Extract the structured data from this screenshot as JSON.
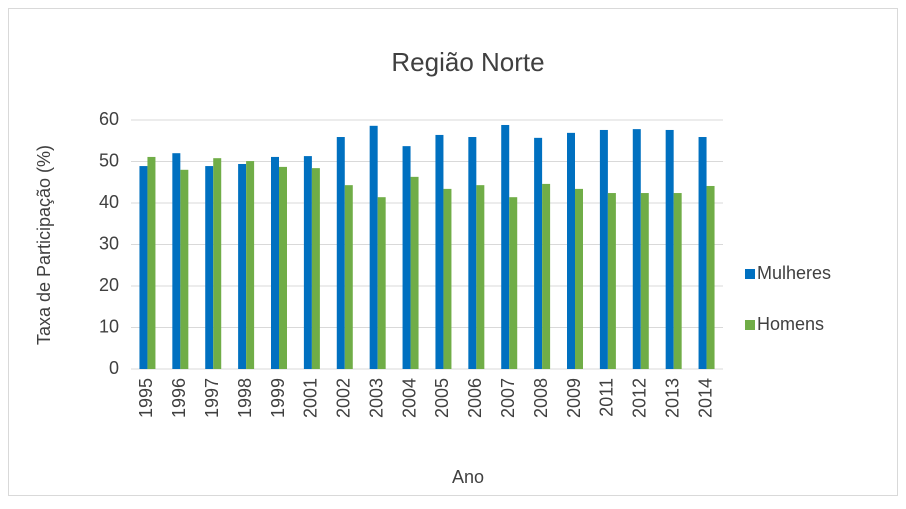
{
  "chart_data": {
    "type": "bar",
    "title": "Região Norte",
    "x_label": "Ano",
    "y_label": "Taxa de Participação (%)",
    "categories": [
      "1995",
      "1996",
      "1997",
      "1998",
      "1999",
      "2001",
      "2002",
      "2003",
      "2004",
      "2005",
      "2006",
      "2007",
      "2008",
      "2009",
      "2011",
      "2012",
      "2013",
      "2014"
    ],
    "series": [
      {
        "name": "Mulheres",
        "color": "#0070c0",
        "values": [
          48.9,
          52.0,
          48.9,
          49.4,
          51.1,
          51.3,
          55.9,
          58.6,
          53.7,
          56.4,
          55.9,
          58.8,
          55.7,
          56.9,
          57.6,
          57.8,
          57.6,
          55.9
        ]
      },
      {
        "name": "Homens",
        "color": "#70ad47",
        "values": [
          51.1,
          48.0,
          50.8,
          50.1,
          48.7,
          48.4,
          44.3,
          41.4,
          46.3,
          43.4,
          44.3,
          41.4,
          44.6,
          43.4,
          42.4,
          42.4,
          42.4,
          44.1
        ]
      }
    ],
    "ylim": [
      0,
      60
    ],
    "yticks": [
      0,
      10,
      20,
      30,
      40,
      50,
      60
    ],
    "grid": true,
    "legend": "right"
  }
}
